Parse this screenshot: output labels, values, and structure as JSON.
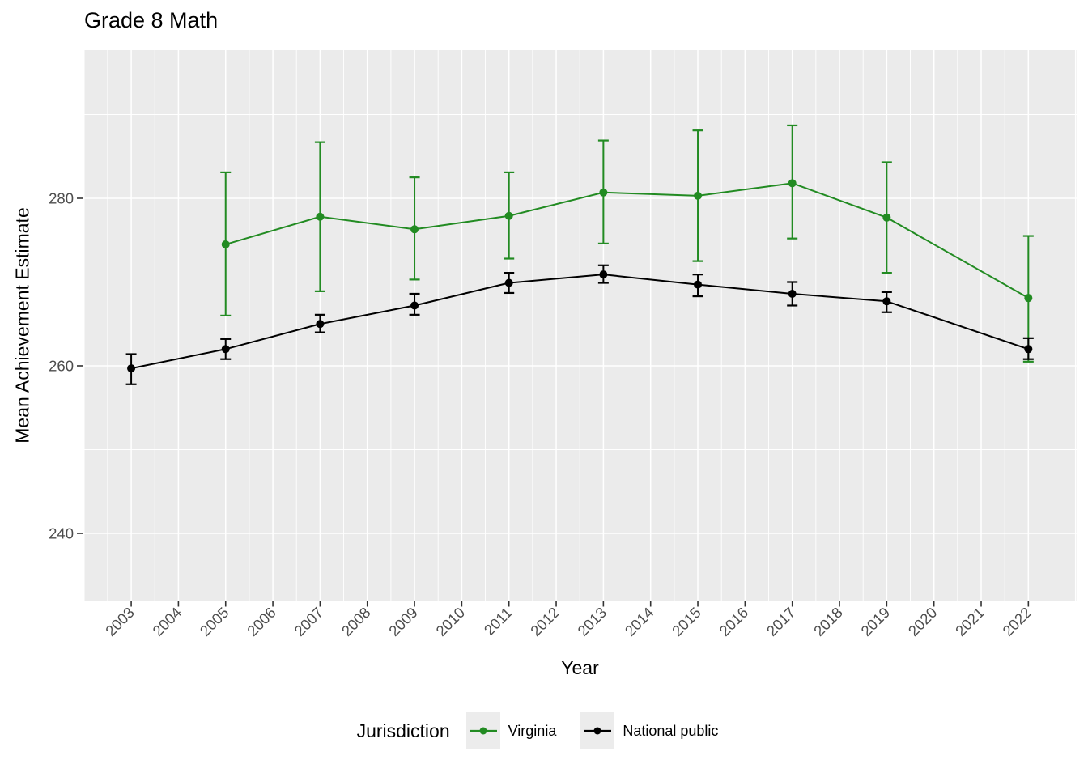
{
  "chart_data": {
    "type": "line",
    "title": "Grade 8 Math",
    "xlabel": "Year",
    "ylabel": "Mean Achievement Estimate",
    "legend_title": "Jurisdiction",
    "legend_position": "bottom",
    "grid": "white major+minor gridlines on grey panel",
    "x_ticks": [
      2003,
      2004,
      2005,
      2006,
      2007,
      2008,
      2009,
      2010,
      2011,
      2012,
      2013,
      2014,
      2015,
      2016,
      2017,
      2018,
      2019,
      2020,
      2021,
      2022
    ],
    "y_ticks": [
      240,
      260,
      280
    ],
    "xlim": [
      2001.97,
      2023.04
    ],
    "ylim": [
      231.98,
      297.68
    ],
    "series": [
      {
        "name": "Virginia",
        "color": "#228B22",
        "x": [
          2005,
          2007,
          2009,
          2011,
          2013,
          2015,
          2017,
          2019,
          2022
        ],
        "y": [
          274.5,
          277.8,
          276.3,
          277.9,
          280.7,
          280.3,
          281.8,
          277.7,
          268.1
        ],
        "ci_low": [
          266.0,
          268.9,
          270.3,
          272.8,
          274.6,
          272.5,
          275.2,
          271.1,
          260.5
        ],
        "ci_high": [
          283.1,
          286.7,
          282.5,
          283.1,
          286.9,
          288.1,
          288.7,
          284.3,
          275.5
        ]
      },
      {
        "name": "National public",
        "color": "#000000",
        "x": [
          2003,
          2005,
          2007,
          2009,
          2011,
          2013,
          2015,
          2017,
          2019,
          2022
        ],
        "y": [
          259.7,
          262.0,
          265.0,
          267.2,
          269.9,
          270.9,
          269.7,
          268.6,
          267.7,
          262.0
        ],
        "ci_low": [
          257.8,
          260.8,
          264.0,
          266.1,
          268.7,
          269.9,
          268.3,
          267.2,
          266.4,
          260.8
        ],
        "ci_high": [
          261.4,
          263.2,
          266.1,
          268.6,
          271.1,
          272.0,
          270.9,
          270.0,
          268.8,
          263.3
        ]
      }
    ]
  },
  "colors": {
    "panel_background": "#EBEBEB",
    "gridline": "#FFFFFF",
    "axis_text": "#4D4D4D",
    "tick_mark": "#333333",
    "legend_key_background": "#ECECEC",
    "virginia_green": "#228B22",
    "national_black": "#000000"
  }
}
